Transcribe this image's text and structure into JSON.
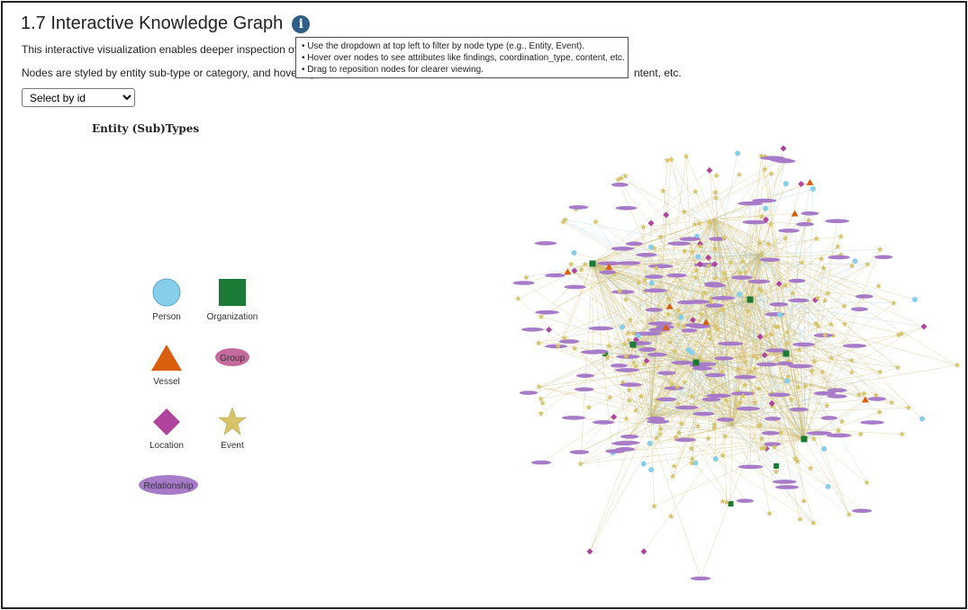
{
  "header": {
    "title": "1.7 Interactive Knowledge Graph",
    "info_icon": "i"
  },
  "description": {
    "line1": "This interactive visualization enables deeper inspection of noc",
    "line2": "Nodes are styled by entity sub-type or category, and hovering",
    "line2_tail": "ntent, etc."
  },
  "select": {
    "value": "Select by id",
    "options": [
      "Select by id"
    ]
  },
  "tooltip": {
    "items": [
      "• Use the dropdown at top left to filter by node type (e.g., Entity, Event).",
      "• Hover over nodes to see attributes like findings, coordination_type, content, etc.",
      "• Drag to reposition nodes for clearer viewing."
    ]
  },
  "legend": {
    "title": "Entity (Sub)Types",
    "items": [
      {
        "label": "Person",
        "shape": "circle",
        "color": "#87ceeb"
      },
      {
        "label": "Organization",
        "shape": "square",
        "color": "#1a7a36"
      },
      {
        "label": "Vessel",
        "shape": "triangle",
        "color": "#d95f0e"
      },
      {
        "label": "Group",
        "shape": "ellipse",
        "color": "#c46a9c"
      },
      {
        "label": "Location",
        "shape": "diamond",
        "color": "#b0449c"
      },
      {
        "label": "Event",
        "shape": "star",
        "color": "#d6c36a"
      },
      {
        "label": "Relationship",
        "shape": "ellipse",
        "color": "#a77bc8"
      }
    ]
  },
  "colors": {
    "person": "#87ceeb",
    "organization": "#1a7a36",
    "vessel": "#d95f0e",
    "group": "#c46a9c",
    "location": "#b0449c",
    "event": "#d6c36a",
    "relationship": "#a77bc8",
    "edge_event": "#cdb86a",
    "edge_person": "#9ccfe6"
  }
}
